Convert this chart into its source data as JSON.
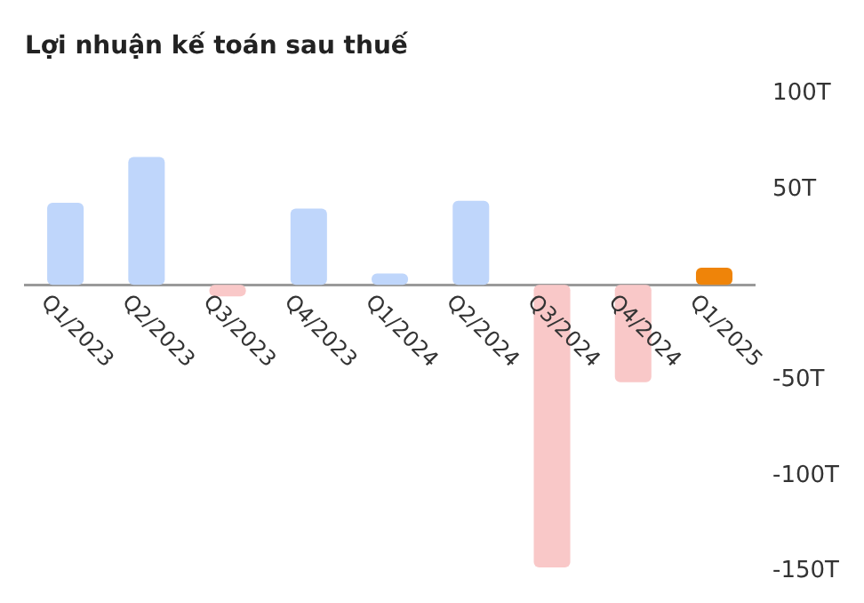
{
  "chart_data": {
    "type": "bar",
    "title": "Lợi nhuận kế toán sau thuế",
    "categories": [
      "Q1/2023",
      "Q2/2023",
      "Q3/2023",
      "Q4/2023",
      "Q1/2024",
      "Q2/2024",
      "Q3/2024",
      "Q4/2024",
      "Q1/2025"
    ],
    "values": [
      43,
      67,
      -6,
      40,
      6,
      44,
      -148,
      -51,
      9
    ],
    "colors": [
      "#bfd6fb",
      "#bfd6fb",
      "#f9c8c8",
      "#bfd6fb",
      "#bfd6fb",
      "#bfd6fb",
      "#f9c8c8",
      "#f9c8c8",
      "#ef8409"
    ],
    "ylim": [
      -150,
      100
    ],
    "yticks": [
      {
        "value": 100,
        "label": "100T"
      },
      {
        "value": 50,
        "label": "50T"
      },
      {
        "value": -50,
        "label": "-50T"
      },
      {
        "value": -100,
        "label": "-100T"
      },
      {
        "value": -150,
        "label": "-150T"
      }
    ],
    "grid": false,
    "legend": false
  }
}
